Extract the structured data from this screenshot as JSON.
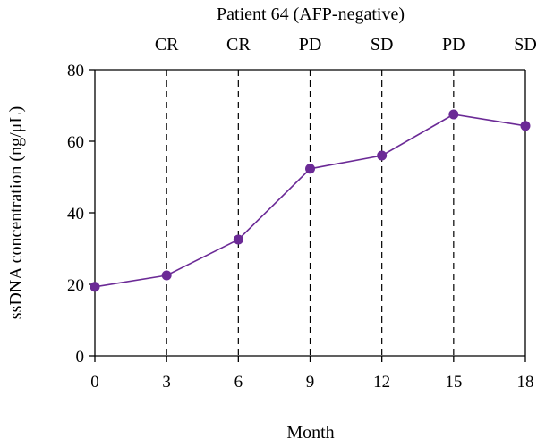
{
  "chart_data": {
    "type": "line",
    "title": "Patient 64 (AFP-negative)",
    "xlabel": "Month",
    "ylabel": "ssDNA concentration (ng/μL)",
    "x": [
      0,
      3,
      6,
      9,
      12,
      15,
      18
    ],
    "x_tick_labels": [
      "0",
      "3",
      "6",
      "9",
      "12",
      "15",
      "18"
    ],
    "xlim": [
      0,
      18
    ],
    "ylim": [
      0,
      80
    ],
    "y_ticks": [
      0,
      20,
      40,
      60,
      80
    ],
    "y_tick_labels": [
      "0",
      "20",
      "40",
      "60",
      "80"
    ],
    "grid": false,
    "series": [
      {
        "values": [
          19.3,
          22.5,
          32.5,
          52.3,
          56.0,
          67.5,
          64.3
        ]
      }
    ],
    "annotations": [
      {
        "x": 3,
        "label": "CR"
      },
      {
        "x": 6,
        "label": "CR"
      },
      {
        "x": 9,
        "label": "PD"
      },
      {
        "x": 12,
        "label": "SD"
      },
      {
        "x": 15,
        "label": "PD"
      },
      {
        "x": 18,
        "label": "SD"
      }
    ],
    "colors": {
      "series": "#6b2a96",
      "axis": "#000000"
    }
  }
}
